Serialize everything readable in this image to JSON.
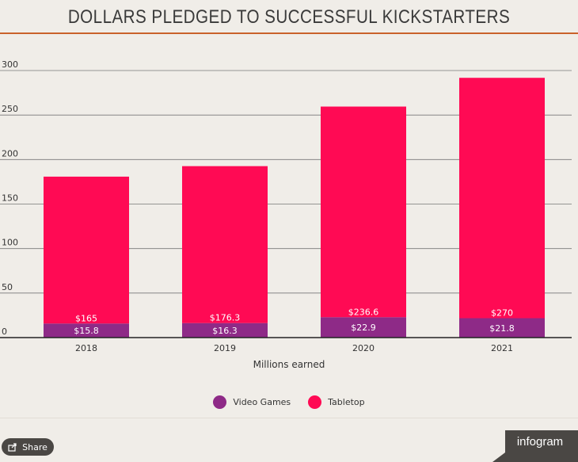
{
  "title": "DOLLARS PLEDGED TO SUCCESSFUL KICKSTARTERS",
  "colors": {
    "title_rule": "#c9622b",
    "video_games": "#8e2a87",
    "tabletop": "#ff0a54",
    "gridline": "#777777",
    "background": "#f0ede8"
  },
  "chart_data": {
    "type": "bar",
    "stacked": true,
    "categories": [
      "2018",
      "2019",
      "2020",
      "2021"
    ],
    "series": [
      {
        "name": "Video Games",
        "values": [
          15.8,
          16.3,
          22.9,
          21.8
        ],
        "labels": [
          "$15.8",
          "$16.3",
          "$22.9",
          "$21.8"
        ],
        "color": "#8e2a87"
      },
      {
        "name": "Tabletop",
        "values": [
          165,
          176.3,
          236.6,
          270
        ],
        "labels": [
          "$165",
          "$176.3",
          "$236.6",
          "$270"
        ],
        "color": "#ff0a54"
      }
    ],
    "xlabel": "Millions earned",
    "ylabel": "",
    "ylim": [
      0,
      300
    ],
    "yticks": [
      0,
      50,
      100,
      150,
      200,
      250,
      300
    ],
    "grid": true,
    "legend_position": "bottom"
  },
  "footer": {
    "share_label": "Share",
    "share_icon": "share-icon",
    "brand": "infogram"
  }
}
